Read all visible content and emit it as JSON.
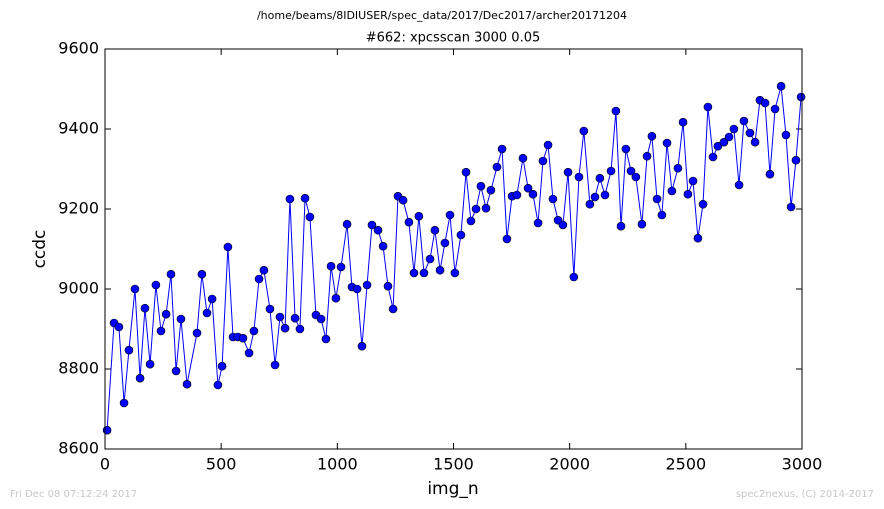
{
  "chart_data": {
    "type": "line",
    "title": "/home/beams/8IDIUSER/spec_data/2017/Dec2017/archer20171204",
    "subtitle": "#662: xpcsscan 3000 0.05",
    "x_label": "img_n",
    "y_label": "ccdc",
    "annotations": [
      "Fri Dec 08 07:12:24 2017",
      "spec2nexus, (C) 2014-2017"
    ],
    "color": "#0000ff",
    "marker": "circle",
    "x": [
      9,
      39,
      60,
      82,
      103,
      129,
      151,
      172,
      194,
      219,
      241,
      263,
      284,
      306,
      327,
      353,
      396,
      417,
      439,
      461,
      486,
      504,
      529,
      551,
      572,
      594,
      620,
      641,
      663,
      684,
      710,
      732,
      753,
      775,
      796,
      818,
      839,
      861,
      882,
      908,
      930,
      951,
      973,
      994,
      1016,
      1042,
      1063,
      1085,
      1106,
      1128,
      1149,
      1175,
      1197,
      1218,
      1240,
      1261,
      1283,
      1308,
      1330,
      1351,
      1373,
      1399,
      1420,
      1442,
      1463,
      1485,
      1506,
      1532,
      1554,
      1575,
      1597,
      1618,
      1640,
      1661,
      1687,
      1709,
      1730,
      1752,
      1773,
      1799,
      1821,
      1842,
      1864,
      1885,
      1907,
      1928,
      1950,
      1971,
      1993,
      2018,
      2040,
      2061,
      2087,
      2109,
      2130,
      2152,
      2178,
      2199,
      2221,
      2242,
      2264,
      2285,
      2311,
      2333,
      2354,
      2376,
      2397,
      2419,
      2440,
      2466,
      2488,
      2509,
      2531,
      2552,
      2574,
      2595,
      2617,
      2638,
      2664,
      2686,
      2707,
      2729,
      2750,
      2776,
      2798,
      2819,
      2841,
      2862,
      2884,
      2910,
      2931,
      2953,
      2974,
      2996
    ],
    "values": [
      8647,
      8915,
      8905,
      8715,
      8847,
      9000,
      8777,
      8952,
      8812,
      9010,
      8895,
      8937,
      9037,
      8795,
      8925,
      8762,
      8890,
      9037,
      8940,
      8975,
      8760,
      8807,
      9105,
      8880,
      8880,
      8877,
      8840,
      8895,
      9025,
      9047,
      8950,
      8810,
      8930,
      8902,
      9225,
      8927,
      8900,
      9227,
      9180,
      8935,
      8925,
      8875,
      9057,
      8977,
      9055,
      9162,
      9005,
      9000,
      8857,
      9010,
      9160,
      9147,
      9107,
      9007,
      8950,
      9232,
      9222,
      9167,
      9040,
      9182,
      9040,
      9075,
      9147,
      9047,
      9115,
      9185,
      9040,
      9135,
      9292,
      9170,
      9200,
      9257,
      9202,
      9247,
      9305,
      9350,
      9125,
      9232,
      9235,
      9327,
      9252,
      9237,
      9165,
      9320,
      9360,
      9225,
      9172,
      9160,
      9292,
      9030,
      9280,
      9395,
      9212,
      9230,
      9277,
      9235,
      9295,
      9445,
      9157,
      9350,
      9295,
      9280,
      9162,
      9332,
      9382,
      9225,
      9185,
      9365,
      9245,
      9302,
      9417,
      9237,
      9270,
      9127,
      9212,
      9455,
      9330,
      9357,
      9367,
      9380,
      9400,
      9260,
      9420,
      9390,
      9367,
      9472,
      9465,
      9287,
      9450,
      9507,
      9385,
      9205,
      9322,
      9480
    ],
    "xlim": [
      0,
      3000
    ],
    "xticks": [
      0,
      500,
      1000,
      1500,
      2000,
      2500,
      3000
    ],
    "ylim": [
      8600,
      9600
    ],
    "yticks": [
      8600,
      8800,
      9000,
      9200,
      9400,
      9600
    ],
    "grid": false
  }
}
